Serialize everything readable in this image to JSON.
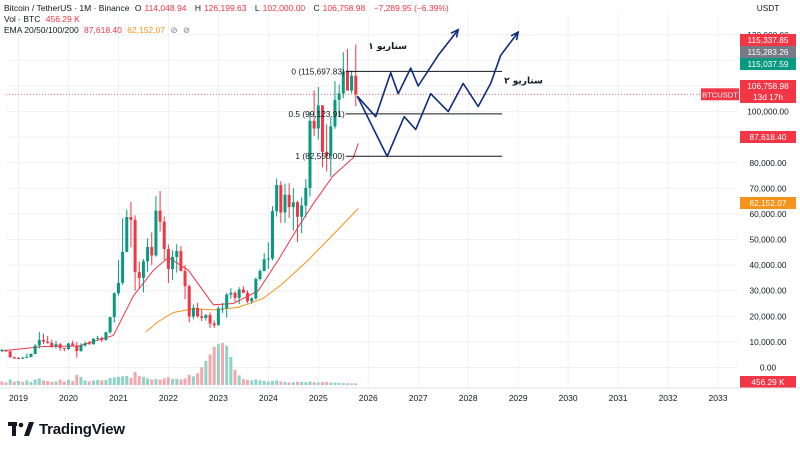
{
  "header": {
    "symbol": "Bitcoin / TetherUS · 1M · Binance",
    "ohlc": {
      "open_label": "O",
      "open": "114,048.94",
      "high_label": "H",
      "high": "126,199.63",
      "low_label": "L",
      "low": "102,000.00",
      "close_label": "C",
      "close": "106,758.98",
      "change": "−7,289.95 (−6.39%)"
    },
    "vol_label": "Vol · BTC",
    "vol_value": "456.29 K",
    "ema_label": "EMA 20/50/100/200",
    "ema1": "87,618.40",
    "ema2": "62,152.07"
  },
  "axis_unit": "USDT",
  "price_labels": [
    {
      "value": "115,337.85",
      "color": "#f23645"
    },
    {
      "value": "115,283.26",
      "color": "#787b86"
    },
    {
      "value": "115,037.59",
      "color": "#089981"
    },
    {
      "value": "106,758.98",
      "color": "#f23645"
    },
    {
      "value": "13d 17h",
      "color": "#f23645"
    },
    {
      "value": "87,618.40",
      "color": "#f23645"
    },
    {
      "value": "62,152.07",
      "color": "#f7931a"
    },
    {
      "value": "456.29 K",
      "color": "#f23645"
    }
  ],
  "symbol_tag": "BTCUSDT",
  "annotations": {
    "scenario1": "سناریو ۱",
    "scenario2": "سناریو ۲",
    "fib": [
      {
        "label": "0 (115,697.83)",
        "price": 115697.83
      },
      {
        "label": "0.5 (99,123.91)",
        "price": 99123.91
      },
      {
        "label": "1 (82,550.00)",
        "price": 82550.0
      }
    ]
  },
  "colors": {
    "up": "#089981",
    "down": "#f23645",
    "ema1": "#f23645",
    "ema2": "#f7931a",
    "scenario": "#0d2c7a",
    "grid": "#eef0f3"
  },
  "brand": "TradingView",
  "chart_data": {
    "type": "candlestick",
    "title": "Bitcoin / TetherUS · 1M · Binance",
    "ylabel": "USDT",
    "ylim": [
      -8000,
      135000
    ],
    "y_ticks": [
      130000,
      120000,
      110000,
      100000,
      90000,
      80000,
      70000,
      60000,
      50000,
      40000,
      30000,
      20000,
      10000,
      0
    ],
    "y_tick_labels": [
      "130,000.00",
      "120,000.00",
      "110,000.00",
      "100,000.00",
      "90,000.00",
      "80,000.00",
      "70,000.00",
      "60,000.00",
      "50,000.00",
      "40,000.00",
      "30,000.00",
      "20,000.00",
      "10,000.00",
      "0.00"
    ],
    "x_ticks": [
      "2019",
      "2020",
      "2021",
      "2022",
      "2023",
      "2024",
      "2025",
      "2026",
      "2027",
      "2028",
      "2029",
      "2030",
      "2031",
      "2032",
      "2033"
    ],
    "x_tick_years": [
      2019,
      2020,
      2021,
      2022,
      2023,
      2024,
      2025,
      2026,
      2027,
      2028,
      2029,
      2030,
      2031,
      2032,
      2033
    ],
    "x_range_years": [
      2018.75,
      2033.4
    ],
    "candles_start": 2018.667,
    "candles": [
      [
        6600,
        7300,
        6000,
        6900
      ],
      [
        6900,
        7000,
        6200,
        6300
      ],
      [
        6300,
        6500,
        3800,
        4000
      ],
      [
        4000,
        4200,
        3300,
        3700
      ],
      [
        3700,
        4100,
        3400,
        3450
      ],
      [
        3450,
        4200,
        3400,
        3850
      ],
      [
        3850,
        5500,
        3800,
        4100
      ],
      [
        4100,
        5600,
        4000,
        5300
      ],
      [
        5300,
        9100,
        5300,
        8600
      ],
      [
        8600,
        13900,
        7500,
        10800
      ],
      [
        10800,
        13200,
        9100,
        10100
      ],
      [
        10100,
        12300,
        9300,
        9600
      ],
      [
        9600,
        10900,
        7700,
        8300
      ],
      [
        8300,
        10400,
        7400,
        9100
      ],
      [
        9100,
        9600,
        6500,
        7600
      ],
      [
        7600,
        7700,
        6400,
        7200
      ],
      [
        7200,
        9600,
        6900,
        9400
      ],
      [
        9400,
        10500,
        8600,
        8600
      ],
      [
        8600,
        10000,
        3800,
        6400
      ],
      [
        6400,
        9500,
        6200,
        8600
      ],
      [
        8600,
        10100,
        8100,
        9500
      ],
      [
        9500,
        10400,
        8900,
        9100
      ],
      [
        9100,
        11400,
        9000,
        11300
      ],
      [
        11300,
        12400,
        10600,
        11600
      ],
      [
        11600,
        12000,
        10000,
        10800
      ],
      [
        10800,
        14000,
        10400,
        13800
      ],
      [
        13800,
        19800,
        13200,
        19700
      ],
      [
        19700,
        29300,
        17500,
        29000
      ],
      [
        29000,
        41900,
        28100,
        33100
      ],
      [
        33100,
        58300,
        32300,
        45200
      ],
      [
        45200,
        61700,
        45000,
        58800
      ],
      [
        58800,
        64800,
        47000,
        57700
      ],
      [
        57700,
        59500,
        30000,
        37300
      ],
      [
        37300,
        41300,
        31000,
        35000
      ],
      [
        35000,
        42400,
        29300,
        41500
      ],
      [
        41500,
        50500,
        37300,
        47100
      ],
      [
        47100,
        52900,
        40000,
        43800
      ],
      [
        43800,
        67000,
        43300,
        61300
      ],
      [
        61300,
        69000,
        53200,
        57000
      ],
      [
        57000,
        59000,
        42000,
        46300
      ],
      [
        46300,
        48000,
        33000,
        38500
      ],
      [
        38500,
        45800,
        34300,
        43200
      ],
      [
        43200,
        48200,
        37100,
        45500
      ],
      [
        45500,
        47400,
        37600,
        37700
      ],
      [
        37700,
        40000,
        26700,
        31800
      ],
      [
        31800,
        32400,
        17600,
        19900
      ],
      [
        19900,
        24600,
        18800,
        23300
      ],
      [
        23300,
        25200,
        19500,
        20000
      ],
      [
        20000,
        22800,
        18100,
        19400
      ],
      [
        19400,
        20900,
        18300,
        20500
      ],
      [
        20500,
        21500,
        15500,
        17200
      ],
      [
        17200,
        18400,
        15500,
        16500
      ],
      [
        16500,
        23900,
        16500,
        23100
      ],
      [
        23100,
        25200,
        21300,
        23100
      ],
      [
        23100,
        29200,
        19500,
        28500
      ],
      [
        28500,
        31000,
        26900,
        29200
      ],
      [
        29200,
        29800,
        25800,
        27200
      ],
      [
        27200,
        31400,
        24800,
        30500
      ],
      [
        30500,
        31800,
        29000,
        29200
      ],
      [
        29200,
        30200,
        25200,
        25900
      ],
      [
        25900,
        27500,
        24900,
        27000
      ],
      [
        27000,
        35200,
        26500,
        34600
      ],
      [
        34600,
        38400,
        34000,
        37700
      ],
      [
        37700,
        44700,
        37600,
        42300
      ],
      [
        42300,
        48900,
        38500,
        42600
      ],
      [
        42600,
        63000,
        41900,
        61100
      ],
      [
        61100,
        73800,
        59000,
        71300
      ],
      [
        71300,
        72800,
        56500,
        60600
      ],
      [
        60600,
        71900,
        56500,
        67500
      ],
      [
        67500,
        72000,
        58400,
        62700
      ],
      [
        62700,
        70000,
        53500,
        64600
      ],
      [
        64600,
        65100,
        49000,
        58900
      ],
      [
        58900,
        66500,
        52500,
        63300
      ],
      [
        63300,
        73600,
        58900,
        70200
      ],
      [
        70200,
        99800,
        66800,
        96400
      ],
      [
        96400,
        108300,
        90500,
        93400
      ],
      [
        93400,
        109600,
        89100,
        102400
      ],
      [
        102400,
        102500,
        78200,
        84300
      ],
      [
        84300,
        95000,
        76600,
        82500
      ],
      [
        82500,
        97900,
        74500,
        94200
      ],
      [
        94200,
        111900,
        93300,
        104600
      ],
      [
        104600,
        110600,
        98200,
        107100
      ],
      [
        107100,
        123200,
        105300,
        115700
      ],
      [
        115700,
        124500,
        108700,
        108200
      ],
      [
        108200,
        116000,
        107200,
        114000
      ],
      [
        114000,
        126200,
        102000,
        106750
      ]
    ],
    "volumes": [
      [
        14000,
        0
      ],
      [
        10000,
        0
      ],
      [
        22000,
        1
      ],
      [
        13000,
        0
      ],
      [
        16000,
        1
      ],
      [
        12000,
        0
      ],
      [
        18000,
        1
      ],
      [
        12000,
        1
      ],
      [
        22000,
        1
      ],
      [
        26000,
        1
      ],
      [
        18000,
        0
      ],
      [
        16000,
        0
      ],
      [
        12000,
        0
      ],
      [
        14000,
        1
      ],
      [
        21000,
        0
      ],
      [
        14000,
        0
      ],
      [
        20000,
        1
      ],
      [
        15000,
        0
      ],
      [
        40000,
        0
      ],
      [
        32000,
        1
      ],
      [
        18000,
        1
      ],
      [
        14000,
        0
      ],
      [
        18000,
        1
      ],
      [
        20000,
        1
      ],
      [
        18000,
        0
      ],
      [
        20000,
        1
      ],
      [
        28000,
        1
      ],
      [
        30000,
        1
      ],
      [
        32000,
        1
      ],
      [
        34000,
        1
      ],
      [
        36000,
        1
      ],
      [
        28000,
        0
      ],
      [
        52000,
        0
      ],
      [
        36000,
        0
      ],
      [
        32000,
        1
      ],
      [
        26000,
        1
      ],
      [
        22000,
        0
      ],
      [
        24000,
        1
      ],
      [
        22000,
        0
      ],
      [
        26000,
        0
      ],
      [
        30000,
        0
      ],
      [
        24000,
        1
      ],
      [
        24000,
        1
      ],
      [
        22000,
        0
      ],
      [
        26000,
        0
      ],
      [
        40000,
        0
      ],
      [
        34000,
        1
      ],
      [
        46000,
        0
      ],
      [
        70000,
        0
      ],
      [
        95000,
        1
      ],
      [
        120000,
        0
      ],
      [
        150000,
        0
      ],
      [
        160000,
        1
      ],
      [
        165000,
        0
      ],
      [
        155000,
        1
      ],
      [
        110000,
        1
      ],
      [
        60000,
        0
      ],
      [
        38000,
        1
      ],
      [
        24000,
        0
      ],
      [
        20000,
        0
      ],
      [
        18000,
        1
      ],
      [
        22000,
        1
      ],
      [
        18000,
        1
      ],
      [
        16000,
        1
      ],
      [
        14000,
        1
      ],
      [
        16000,
        1
      ],
      [
        18000,
        1
      ],
      [
        14000,
        0
      ],
      [
        12000,
        1
      ],
      [
        10000,
        0
      ],
      [
        11000,
        1
      ],
      [
        12000,
        0
      ],
      [
        12000,
        1
      ],
      [
        11000,
        1
      ],
      [
        14000,
        1
      ],
      [
        11000,
        0
      ],
      [
        10000,
        1
      ],
      [
        11000,
        0
      ],
      [
        12000,
        0
      ],
      [
        10000,
        1
      ],
      [
        9000,
        1
      ],
      [
        8000,
        1
      ],
      [
        7500,
        1
      ],
      [
        7000,
        0
      ],
      [
        7000,
        1
      ],
      [
        6500,
        0
      ]
    ],
    "ema1": [
      [
        2018.67,
        6500
      ],
      [
        2019.5,
        8200
      ],
      [
        2020.2,
        8400
      ],
      [
        2020.9,
        12500
      ],
      [
        2021.3,
        28000
      ],
      [
        2021.7,
        38000
      ],
      [
        2022.0,
        43000
      ],
      [
        2022.4,
        38000
      ],
      [
        2022.9,
        24500
      ],
      [
        2023.3,
        25000
      ],
      [
        2023.8,
        30000
      ],
      [
        2024.2,
        42000
      ],
      [
        2024.6,
        55000
      ],
      [
        2024.9,
        64000
      ],
      [
        2025.3,
        75000
      ],
      [
        2025.7,
        82000
      ],
      [
        2025.8,
        87618
      ]
    ],
    "ema2": [
      [
        2021.55,
        14000
      ],
      [
        2021.8,
        18000
      ],
      [
        2022.1,
        21500
      ],
      [
        2022.5,
        23000
      ],
      [
        2022.9,
        22500
      ],
      [
        2023.4,
        23500
      ],
      [
        2023.9,
        27000
      ],
      [
        2024.3,
        33000
      ],
      [
        2024.8,
        42000
      ],
      [
        2025.3,
        52000
      ],
      [
        2025.8,
        62152
      ]
    ],
    "scenario1": [
      [
        2025.78,
        106000
      ],
      [
        2026.15,
        98000
      ],
      [
        2026.45,
        115200
      ],
      [
        2026.6,
        107000
      ],
      [
        2026.85,
        117000
      ],
      [
        2027.0,
        110000
      ],
      [
        2027.4,
        122000
      ],
      [
        2027.8,
        132000
      ]
    ],
    "scenario2": [
      [
        2025.78,
        106000
      ],
      [
        2026.38,
        82500
      ],
      [
        2026.72,
        98000
      ],
      [
        2026.95,
        93000
      ],
      [
        2027.25,
        107000
      ],
      [
        2027.6,
        100000
      ],
      [
        2027.9,
        111000
      ],
      [
        2028.2,
        102000
      ],
      [
        2028.45,
        111000
      ],
      [
        2028.65,
        122000
      ],
      [
        2029.0,
        131000
      ]
    ]
  }
}
